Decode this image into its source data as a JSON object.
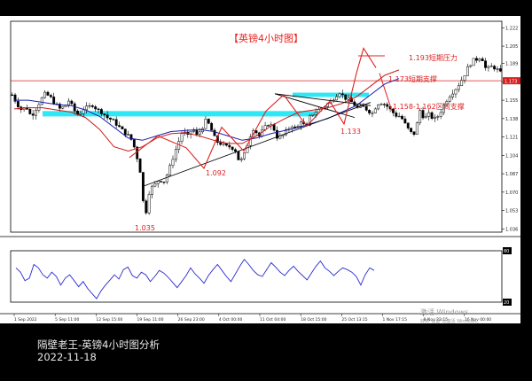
{
  "chart_data": [
    {
      "type": "candlestick",
      "title": "【英镑4小时图】",
      "title_color": "#e8221e",
      "x_tick_labels": [
        "1 Sep 2022",
        "5 Sep 11:00",
        "12 Sep 15:00",
        "19 Sep 11:00",
        "26 Sep 23:00",
        "4 Oct 00:00",
        "11 Oct 04:00",
        "18 Oct 15:00",
        "25 Oct 13:15",
        "1 Nov 17:15",
        "8 Nov 22:15",
        "16 Nov 00:00"
      ],
      "y_tick_labels": [
        "1.222",
        "1.205",
        "1.189",
        "1.172",
        "1.155",
        "1.138",
        "1.121",
        "1.104",
        "1.087",
        "1.070",
        "1.053",
        "1.036"
      ],
      "ylim": [
        1.033,
        1.228
      ],
      "n_bars": 165,
      "close_path": [
        1.16,
        1.152,
        1.146,
        1.149,
        1.14,
        1.147,
        1.155,
        1.161,
        1.158,
        1.152,
        1.147,
        1.149,
        1.155,
        1.146,
        1.141,
        1.147,
        1.148,
        1.151,
        1.146,
        1.144,
        1.139,
        1.137,
        1.133,
        1.128,
        1.124,
        1.12,
        1.109,
        1.09,
        1.045,
        1.073,
        1.076,
        1.082,
        1.08,
        1.089,
        1.103,
        1.115,
        1.127,
        1.121,
        1.129,
        1.122,
        1.129,
        1.137,
        1.128,
        1.117,
        1.115,
        1.112,
        1.112,
        1.11,
        1.097,
        1.105,
        1.12,
        1.13,
        1.121,
        1.128,
        1.133,
        1.131,
        1.12,
        1.122,
        1.127,
        1.132,
        1.128,
        1.137,
        1.128,
        1.142,
        1.144,
        1.147,
        1.15,
        1.153,
        1.158,
        1.163,
        1.158,
        1.155,
        1.152,
        1.147,
        1.149,
        1.146,
        1.143,
        1.152,
        1.153,
        1.15,
        1.145,
        1.141,
        1.14,
        1.132,
        1.125,
        1.124,
        1.146,
        1.138,
        1.142,
        1.137,
        1.141,
        1.15,
        1.158,
        1.163,
        1.168,
        1.175,
        1.184,
        1.191,
        1.193,
        1.196,
        1.183,
        1.186,
        1.185,
        1.18
      ],
      "close_path_note": "",
      "series": [
        {
          "name": "",
          "color": "#1a1aa8",
          "values": [
            1.155,
            1.155,
            1.153,
            1.151,
            1.15,
            1.146,
            1.14,
            1.13,
            1.12,
            1.118,
            1.122,
            1.126,
            1.127,
            1.128,
            1.126,
            1.122,
            1.118,
            1.12,
            1.124,
            1.127,
            1.13,
            1.134,
            1.138,
            1.144,
            1.15,
            1.16,
            1.17,
            1.175
          ]
        },
        {
          "name": "",
          "color": "#cc1a1a",
          "values": [
            1.147,
            1.148,
            1.148,
            1.146,
            1.144,
            1.139,
            1.128,
            1.112,
            1.108,
            1.112,
            1.12,
            1.124,
            1.125,
            1.122,
            1.118,
            1.115,
            1.115,
            1.122,
            1.131,
            1.138,
            1.144,
            1.146,
            1.148,
            1.152,
            1.158,
            1.168,
            1.178,
            1.183
          ]
        }
      ],
      "horizontal_level": {
        "value": 1.173,
        "color": "#d82020",
        "label": "1.173"
      },
      "support_zones": [
        {
          "from": 1.14,
          "to": 1.145,
          "color": "#2ee8f5"
        },
        {
          "from": 1.158,
          "to": 1.162,
          "color": "#2ee8f5"
        }
      ],
      "annotations": [
        {
          "text": "1.193短期压力",
          "color": "#e02020"
        },
        {
          "text": "1.173短期支撑",
          "color": "#e02020"
        },
        {
          "text": "1.158-1.162区间支撑",
          "color": "#e02020"
        },
        {
          "text": "1.133",
          "color": "#e02020",
          "value": 1.133
        },
        {
          "text": "1.092",
          "color": "#e02020",
          "value": 1.092
        },
        {
          "text": "1.035",
          "color": "#e02020",
          "value": 1.035
        }
      ],
      "watermark": [
        "激活 Windows",
        "转到\"设置\"以激活 Windows。"
      ]
    },
    {
      "type": "line",
      "role": "oscillator",
      "ylim": [
        20,
        80
      ],
      "y_tick_labels": [
        "80",
        "20"
      ],
      "color": "#2a2ad0",
      "values": [
        60,
        55,
        45,
        48,
        64,
        60,
        52,
        48,
        55,
        50,
        40,
        48,
        52,
        45,
        38,
        44,
        36,
        30,
        24,
        33,
        40,
        46,
        52,
        47,
        58,
        61,
        51,
        48,
        55,
        52,
        44,
        50,
        57,
        54,
        49,
        43,
        37,
        44,
        51,
        60,
        53,
        48,
        42,
        51,
        58,
        64,
        57,
        50,
        44,
        53,
        62,
        70,
        64,
        57,
        52,
        50,
        58,
        66,
        61,
        55,
        51,
        57,
        62,
        56,
        51,
        46,
        54,
        62,
        68,
        60,
        56,
        51,
        56,
        60,
        58,
        55,
        50,
        40,
        52,
        60,
        57
      ]
    }
  ],
  "caption": {
    "title": "隔壁老王-英镑4小时图分析",
    "date": "2022-11-18"
  }
}
